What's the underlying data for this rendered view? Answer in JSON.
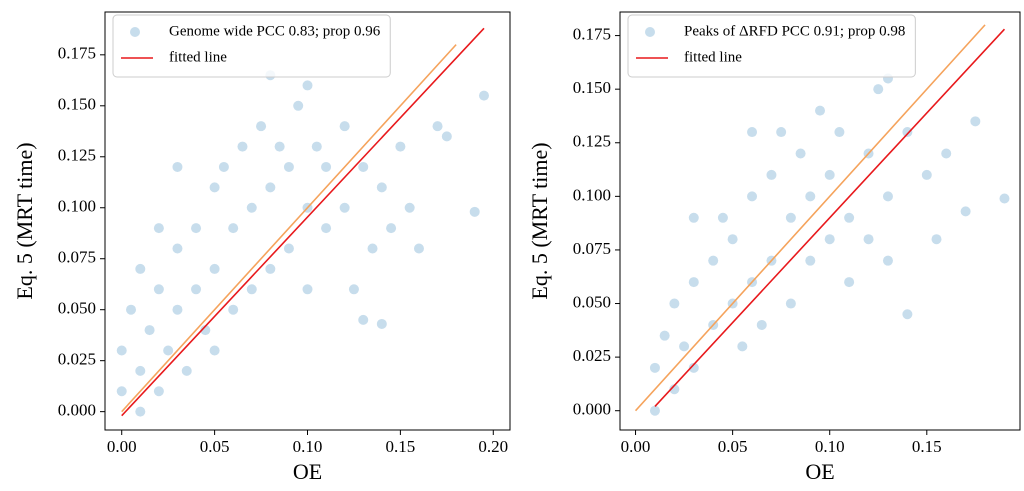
{
  "chart_data": [
    {
      "type": "scatter",
      "xlabel": "OE",
      "ylabel": "Eq. 5 (MRT time)",
      "xlim": [
        -0.009,
        0.209
      ],
      "ylim": [
        -0.009,
        0.196
      ],
      "xticks": [
        {
          "value": 0,
          "label": "0.00"
        },
        {
          "value": 0.05,
          "label": "0.05"
        },
        {
          "value": 0.1,
          "label": "0.10"
        },
        {
          "value": 0.15,
          "label": "0.15"
        },
        {
          "value": 0.2,
          "label": "0.20"
        }
      ],
      "yticks": [
        {
          "value": 0,
          "label": "0.000"
        },
        {
          "value": 0.025,
          "label": "0.025"
        },
        {
          "value": 0.05,
          "label": "0.050"
        },
        {
          "value": 0.075,
          "label": "0.075"
        },
        {
          "value": 0.1,
          "label": "0.100"
        },
        {
          "value": 0.125,
          "label": "0.125"
        },
        {
          "value": 0.15,
          "label": "0.150"
        },
        {
          "value": 0.175,
          "label": "0.175"
        }
      ],
      "legend": "upper left",
      "series": [
        {
          "name": "Genome wide PCC 0.83; prop 0.96",
          "color": "#1f77b4",
          "x": [
            0.0,
            0.0,
            0.005,
            0.01,
            0.01,
            0.015,
            0.02,
            0.02,
            0.025,
            0.03,
            0.03,
            0.035,
            0.04,
            0.04,
            0.045,
            0.05,
            0.05,
            0.05,
            0.055,
            0.06,
            0.06,
            0.065,
            0.07,
            0.07,
            0.075,
            0.08,
            0.08,
            0.085,
            0.09,
            0.09,
            0.095,
            0.1,
            0.1,
            0.105,
            0.11,
            0.11,
            0.12,
            0.12,
            0.125,
            0.13,
            0.135,
            0.14,
            0.145,
            0.15,
            0.155,
            0.16,
            0.17,
            0.175,
            0.19,
            0.195,
            0.13,
            0.14,
            0.03,
            0.02,
            0.01,
            0.1,
            0.08
          ],
          "values": [
            0.01,
            0.03,
            0.05,
            0.02,
            0.0,
            0.04,
            0.06,
            0.01,
            0.03,
            0.08,
            0.05,
            0.02,
            0.09,
            0.06,
            0.04,
            0.11,
            0.07,
            0.03,
            0.12,
            0.09,
            0.05,
            0.13,
            0.1,
            0.06,
            0.14,
            0.11,
            0.07,
            0.13,
            0.12,
            0.08,
            0.15,
            0.1,
            0.06,
            0.13,
            0.09,
            0.12,
            0.1,
            0.14,
            0.06,
            0.12,
            0.08,
            0.11,
            0.09,
            0.13,
            0.1,
            0.08,
            0.14,
            0.135,
            0.098,
            0.155,
            0.045,
            0.043,
            0.12,
            0.09,
            0.07,
            0.16,
            0.165
          ]
        }
      ],
      "fit_line": {
        "name": "fitted line",
        "color": "#e8191c",
        "x": [
          0.0,
          0.195
        ],
        "values": [
          -0.002,
          0.188
        ]
      },
      "reference_line": {
        "color": "#f5a35c",
        "x": [
          0.0,
          0.18
        ],
        "values": [
          0.0,
          0.18
        ]
      }
    },
    {
      "type": "scatter",
      "xlabel": "OE",
      "ylabel": "Eq. 5 (MRT time)",
      "xlim": [
        -0.008,
        0.198
      ],
      "ylim": [
        -0.009,
        0.186
      ],
      "xticks": [
        {
          "value": 0,
          "label": "0.00"
        },
        {
          "value": 0.05,
          "label": "0.05"
        },
        {
          "value": 0.1,
          "label": "0.10"
        },
        {
          "value": 0.15,
          "label": "0.15"
        }
      ],
      "yticks": [
        {
          "value": 0,
          "label": "0.000"
        },
        {
          "value": 0.025,
          "label": "0.025"
        },
        {
          "value": 0.05,
          "label": "0.050"
        },
        {
          "value": 0.075,
          "label": "0.075"
        },
        {
          "value": 0.1,
          "label": "0.100"
        },
        {
          "value": 0.125,
          "label": "0.125"
        },
        {
          "value": 0.15,
          "label": "0.150"
        },
        {
          "value": 0.175,
          "label": "0.175"
        }
      ],
      "legend": "upper left",
      "series": [
        {
          "name": "Peaks of ΔRFD PCC 0.91; prop 0.98",
          "color": "#1f77b4",
          "x": [
            0.01,
            0.01,
            0.015,
            0.02,
            0.02,
            0.025,
            0.03,
            0.03,
            0.04,
            0.04,
            0.045,
            0.05,
            0.05,
            0.055,
            0.06,
            0.06,
            0.065,
            0.07,
            0.07,
            0.075,
            0.08,
            0.08,
            0.085,
            0.09,
            0.09,
            0.095,
            0.1,
            0.1,
            0.105,
            0.11,
            0.11,
            0.12,
            0.12,
            0.125,
            0.13,
            0.13,
            0.14,
            0.14,
            0.15,
            0.155,
            0.16,
            0.17,
            0.175,
            0.19,
            0.13,
            0.03,
            0.06
          ],
          "values": [
            0.0,
            0.02,
            0.035,
            0.01,
            0.05,
            0.03,
            0.06,
            0.02,
            0.07,
            0.04,
            0.09,
            0.05,
            0.08,
            0.03,
            0.1,
            0.06,
            0.04,
            0.11,
            0.07,
            0.13,
            0.09,
            0.05,
            0.12,
            0.1,
            0.07,
            0.14,
            0.11,
            0.08,
            0.13,
            0.09,
            0.06,
            0.12,
            0.08,
            0.15,
            0.1,
            0.07,
            0.13,
            0.045,
            0.11,
            0.08,
            0.12,
            0.093,
            0.135,
            0.099,
            0.155,
            0.09,
            0.13
          ]
        }
      ],
      "fit_line": {
        "name": "fitted line",
        "color": "#e8191c",
        "x": [
          0.01,
          0.19
        ],
        "values": [
          0.002,
          0.178
        ]
      },
      "reference_line": {
        "color": "#f5a35c",
        "x": [
          0.0,
          0.18
        ],
        "values": [
          0.0,
          0.18
        ]
      }
    }
  ]
}
